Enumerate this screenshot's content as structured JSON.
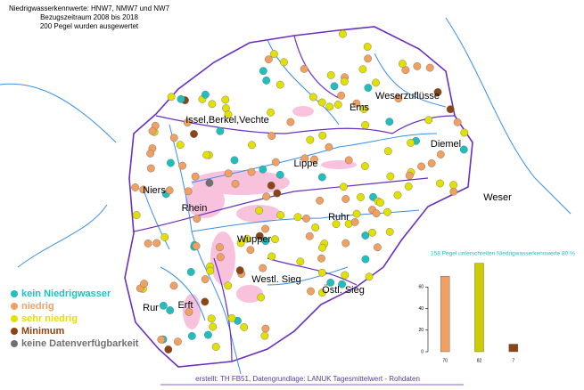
{
  "header": {
    "lines": [
      "Niedrigwasserkennwerte: HNW7, NMW7 und NW7",
      "Bezugszeitraum 2008 bis 2018",
      "200 Pegel wurden ausgewertet"
    ]
  },
  "regions": [
    "Issel,Berkel,Vechte",
    "Ems",
    "Weserzuflüsse",
    "Diemel",
    "Lippe",
    "Niers",
    "Rhein",
    "Ruhr",
    "Weser",
    "Wupper",
    "Westl. Sieg",
    "Östl. Sieg",
    "Rur",
    "Erft"
  ],
  "legend": [
    {
      "label": "kein Niedrigwasser",
      "color": "#1fbfc0"
    },
    {
      "label": "niedrig",
      "color": "#f0a060"
    },
    {
      "label": "sehr niedrig",
      "color": "#e2e000"
    },
    {
      "label": "Minimum",
      "color": "#8b4513"
    },
    {
      "label": "keine Datenverfügbarkeit",
      "color": "#707070"
    }
  ],
  "chart_data": {
    "type": "bar",
    "title": "158 Pegel unterschreiten Niedrigwasserkennwerte 80 %",
    "categories": [
      "70",
      "82",
      "7"
    ],
    "values": [
      70,
      82,
      7
    ],
    "colors": [
      "#f0a060",
      "#cccc00",
      "#8b4513"
    ],
    "ylim": [
      0,
      85
    ],
    "yticks": [
      0,
      20,
      40,
      60
    ]
  },
  "footer": "erstellt: TH FB51, Datengrundlage: LANUK Tagesmittelwert - Rohdaten"
}
